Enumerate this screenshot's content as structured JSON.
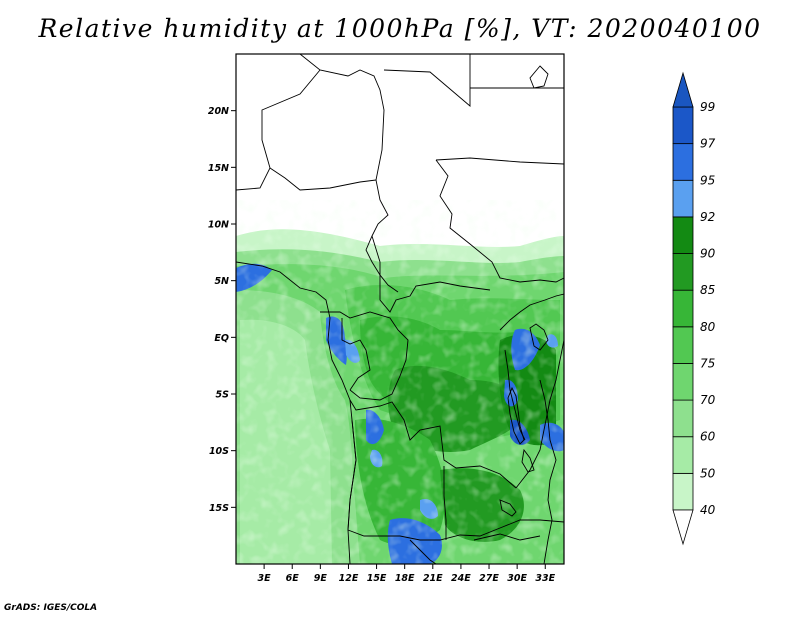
{
  "title": "Relative humidity at 1000hPa [%], VT: 2020040100",
  "credit": "GrADS: IGES/COLA",
  "map": {
    "lon_range": [
      0,
      35
    ],
    "lat_range": [
      -20,
      25
    ],
    "lat_ticks": [
      {
        "value": 20,
        "label": "20N"
      },
      {
        "value": 15,
        "label": "15N"
      },
      {
        "value": 10,
        "label": "10N"
      },
      {
        "value": 5,
        "label": "5N"
      },
      {
        "value": 0,
        "label": "EQ"
      },
      {
        "value": -5,
        "label": "5S"
      },
      {
        "value": -10,
        "label": "10S"
      },
      {
        "value": -15,
        "label": "15S"
      }
    ],
    "lon_ticks": [
      {
        "value": 3,
        "label": "3E"
      },
      {
        "value": 6,
        "label": "6E"
      },
      {
        "value": 9,
        "label": "9E"
      },
      {
        "value": 12,
        "label": "12E"
      },
      {
        "value": 15,
        "label": "15E"
      },
      {
        "value": 18,
        "label": "18E"
      },
      {
        "value": 21,
        "label": "21E"
      },
      {
        "value": 24,
        "label": "24E"
      },
      {
        "value": 27,
        "label": "27E"
      },
      {
        "value": 30,
        "label": "30E"
      },
      {
        "value": 33,
        "label": "33E"
      }
    ]
  },
  "colorbar": {
    "levels": [
      "40",
      "50",
      "60",
      "70",
      "75",
      "80",
      "85",
      "90",
      "92",
      "95",
      "97",
      "99"
    ],
    "colors": [
      "#f0fff0",
      "#c8f5c8",
      "#a6eba6",
      "#8ee08e",
      "#6fd66f",
      "#52c852",
      "#37b637",
      "#229a22",
      "#138a13",
      "#5aa0f0",
      "#2c6fe0",
      "#1b57c8"
    ],
    "extend_low_color": "#ffffff",
    "extend_high_color": "#1a56c0"
  }
}
